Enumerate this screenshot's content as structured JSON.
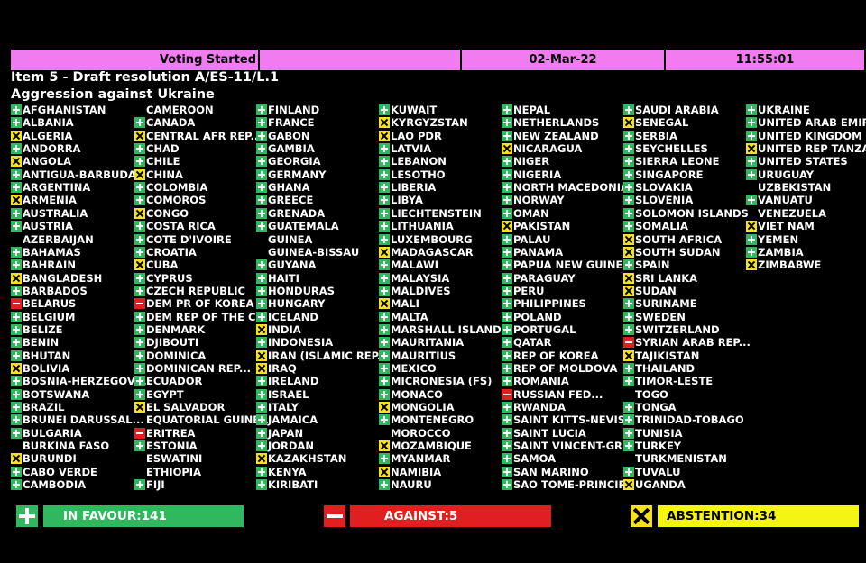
{
  "header": {
    "status": "Voting Started",
    "date": "02-Mar-22",
    "time": "11:55:01"
  },
  "item": {
    "line1": "Item 5 - Draft resolution A/ES-11/L.1",
    "line2": "Aggression against Ukraine"
  },
  "columns": [
    [
      [
        "AFGHANISTAN",
        "Y"
      ],
      [
        "ALBANIA",
        "Y"
      ],
      [
        "ALGERIA",
        "A"
      ],
      [
        "ANDORRA",
        "Y"
      ],
      [
        "ANGOLA",
        "A"
      ],
      [
        "ANTIGUA-BARBUDA",
        "Y"
      ],
      [
        "ARGENTINA",
        "Y"
      ],
      [
        "ARMENIA",
        "A"
      ],
      [
        "AUSTRALIA",
        "Y"
      ],
      [
        "AUSTRIA",
        "Y"
      ],
      [
        "AZERBAIJAN",
        null
      ],
      [
        "BAHAMAS",
        "Y"
      ],
      [
        "BAHRAIN",
        "Y"
      ],
      [
        "BANGLADESH",
        "A"
      ],
      [
        "BARBADOS",
        "Y"
      ],
      [
        "BELARUS",
        "N"
      ],
      [
        "BELGIUM",
        "Y"
      ],
      [
        "BELIZE",
        "Y"
      ],
      [
        "BENIN",
        "Y"
      ],
      [
        "BHUTAN",
        "Y"
      ],
      [
        "BOLIVIA",
        "A"
      ],
      [
        "BOSNIA-HERZEGOVI...",
        "Y"
      ],
      [
        "BOTSWANA",
        "Y"
      ],
      [
        "BRAZIL",
        "Y"
      ],
      [
        "BRUNEI DARUSSAL...",
        "Y"
      ],
      [
        "BULGARIA",
        "Y"
      ],
      [
        "BURKINA FASO",
        null
      ],
      [
        "BURUNDI",
        "A"
      ],
      [
        "CABO VERDE",
        "Y"
      ],
      [
        "CAMBODIA",
        "Y"
      ]
    ],
    [
      [
        "CAMEROON",
        null
      ],
      [
        "CANADA",
        "Y"
      ],
      [
        "CENTRAL AFR REP....",
        "A"
      ],
      [
        "CHAD",
        "Y"
      ],
      [
        "CHILE",
        "Y"
      ],
      [
        "CHINA",
        "A"
      ],
      [
        "COLOMBIA",
        "Y"
      ],
      [
        "COMOROS",
        "Y"
      ],
      [
        "CONGO",
        "A"
      ],
      [
        "COSTA RICA",
        "Y"
      ],
      [
        "COTE D'IVOIRE",
        "Y"
      ],
      [
        "CROATIA",
        "Y"
      ],
      [
        "CUBA",
        "A"
      ],
      [
        "CYPRUS",
        "Y"
      ],
      [
        "CZECH REPUBLIC",
        "Y"
      ],
      [
        "DEM PR OF KOREA",
        "N"
      ],
      [
        "DEM REP OF THE C...",
        "Y"
      ],
      [
        "DENMARK",
        "Y"
      ],
      [
        "DJIBOUTI",
        "Y"
      ],
      [
        "DOMINICA",
        "Y"
      ],
      [
        "DOMINICAN REP...",
        "Y"
      ],
      [
        "ECUADOR",
        "Y"
      ],
      [
        "EGYPT",
        "Y"
      ],
      [
        "EL SALVADOR",
        "A"
      ],
      [
        "EQUATORIAL GUINEA",
        null
      ],
      [
        "ERITREA",
        "N"
      ],
      [
        "ESTONIA",
        "Y"
      ],
      [
        "ESWATINI",
        null
      ],
      [
        "ETHIOPIA",
        null
      ],
      [
        "FIJI",
        "Y"
      ]
    ],
    [
      [
        "FINLAND",
        "Y"
      ],
      [
        "FRANCE",
        "Y"
      ],
      [
        "GABON",
        "Y"
      ],
      [
        "GAMBIA",
        "Y"
      ],
      [
        "GEORGIA",
        "Y"
      ],
      [
        "GERMANY",
        "Y"
      ],
      [
        "GHANA",
        "Y"
      ],
      [
        "GREECE",
        "Y"
      ],
      [
        "GRENADA",
        "Y"
      ],
      [
        "GUATEMALA",
        "Y"
      ],
      [
        "GUINEA",
        null
      ],
      [
        "GUINEA-BISSAU",
        null
      ],
      [
        "GUYANA",
        "Y"
      ],
      [
        "HAITI",
        "Y"
      ],
      [
        "HONDURAS",
        "Y"
      ],
      [
        "HUNGARY",
        "Y"
      ],
      [
        "ICELAND",
        "Y"
      ],
      [
        "INDIA",
        "A"
      ],
      [
        "INDONESIA",
        "Y"
      ],
      [
        "IRAN (ISLAMIC REP...",
        "A"
      ],
      [
        "IRAQ",
        "A"
      ],
      [
        "IRELAND",
        "Y"
      ],
      [
        "ISRAEL",
        "Y"
      ],
      [
        "ITALY",
        "Y"
      ],
      [
        "JAMAICA",
        "Y"
      ],
      [
        "JAPAN",
        "Y"
      ],
      [
        "JORDAN",
        "Y"
      ],
      [
        "KAZAKHSTAN",
        "A"
      ],
      [
        "KENYA",
        "Y"
      ],
      [
        "KIRIBATI",
        "Y"
      ]
    ],
    [
      [
        "KUWAIT",
        "Y"
      ],
      [
        "KYRGYZSTAN",
        "A"
      ],
      [
        "LAO PDR",
        "A"
      ],
      [
        "LATVIA",
        "Y"
      ],
      [
        "LEBANON",
        "Y"
      ],
      [
        "LESOTHO",
        "Y"
      ],
      [
        "LIBERIA",
        "Y"
      ],
      [
        "LIBYA",
        "Y"
      ],
      [
        "LIECHTENSTEIN",
        "Y"
      ],
      [
        "LITHUANIA",
        "Y"
      ],
      [
        "LUXEMBOURG",
        "Y"
      ],
      [
        "MADAGASCAR",
        "A"
      ],
      [
        "MALAWI",
        "Y"
      ],
      [
        "MALAYSIA",
        "Y"
      ],
      [
        "MALDIVES",
        "Y"
      ],
      [
        "MALI",
        "A"
      ],
      [
        "MALTA",
        "Y"
      ],
      [
        "MARSHALL ISLANDS",
        "Y"
      ],
      [
        "MAURITANIA",
        "Y"
      ],
      [
        "MAURITIUS",
        "Y"
      ],
      [
        "MEXICO",
        "Y"
      ],
      [
        "MICRONESIA (FS)",
        "Y"
      ],
      [
        "MONACO",
        "Y"
      ],
      [
        "MONGOLIA",
        "A"
      ],
      [
        "MONTENEGRO",
        "Y"
      ],
      [
        "MOROCCO",
        null
      ],
      [
        "MOZAMBIQUE",
        "A"
      ],
      [
        "MYANMAR",
        "Y"
      ],
      [
        "NAMIBIA",
        "A"
      ],
      [
        "NAURU",
        "Y"
      ]
    ],
    [
      [
        "NEPAL",
        "Y"
      ],
      [
        "NETHERLANDS",
        "Y"
      ],
      [
        "NEW ZEALAND",
        "Y"
      ],
      [
        "NICARAGUA",
        "A"
      ],
      [
        "NIGER",
        "Y"
      ],
      [
        "NIGERIA",
        "Y"
      ],
      [
        "NORTH MACEDONIA",
        "Y"
      ],
      [
        "NORWAY",
        "Y"
      ],
      [
        "OMAN",
        "Y"
      ],
      [
        "PAKISTAN",
        "A"
      ],
      [
        "PALAU",
        "Y"
      ],
      [
        "PANAMA",
        "Y"
      ],
      [
        "PAPUA NEW GUINEA",
        "Y"
      ],
      [
        "PARAGUAY",
        "Y"
      ],
      [
        "PERU",
        "Y"
      ],
      [
        "PHILIPPINES",
        "Y"
      ],
      [
        "POLAND",
        "Y"
      ],
      [
        "PORTUGAL",
        "Y"
      ],
      [
        "QATAR",
        "Y"
      ],
      [
        "REP OF KOREA",
        "Y"
      ],
      [
        "REP OF MOLDOVA",
        "Y"
      ],
      [
        "ROMANIA",
        "Y"
      ],
      [
        "RUSSIAN FED...",
        "N"
      ],
      [
        "RWANDA",
        "Y"
      ],
      [
        "SAINT KITTS-NEVIS",
        "Y"
      ],
      [
        "SAINT LUCIA",
        "Y"
      ],
      [
        "SAINT VINCENT-GR...",
        "Y"
      ],
      [
        "SAMOA",
        "Y"
      ],
      [
        "SAN MARINO",
        "Y"
      ],
      [
        "SAO TOME-PRINCIPE",
        "Y"
      ]
    ],
    [
      [
        "SAUDI ARABIA",
        "Y"
      ],
      [
        "SENEGAL",
        "A"
      ],
      [
        "SERBIA",
        "Y"
      ],
      [
        "SEYCHELLES",
        "Y"
      ],
      [
        "SIERRA LEONE",
        "Y"
      ],
      [
        "SINGAPORE",
        "Y"
      ],
      [
        "SLOVAKIA",
        "Y"
      ],
      [
        "SLOVENIA",
        "Y"
      ],
      [
        "SOLOMON ISLANDS",
        "Y"
      ],
      [
        "SOMALIA",
        "Y"
      ],
      [
        "SOUTH AFRICA",
        "A"
      ],
      [
        "SOUTH SUDAN",
        "A"
      ],
      [
        "SPAIN",
        "Y"
      ],
      [
        "SRI LANKA",
        "A"
      ],
      [
        "SUDAN",
        "A"
      ],
      [
        "SURINAME",
        "Y"
      ],
      [
        "SWEDEN",
        "Y"
      ],
      [
        "SWITZERLAND",
        "Y"
      ],
      [
        "SYRIAN ARAB REP...",
        "N"
      ],
      [
        "TAJIKISTAN",
        "A"
      ],
      [
        "THAILAND",
        "Y"
      ],
      [
        "TIMOR-LESTE",
        "Y"
      ],
      [
        "TOGO",
        null
      ],
      [
        "TONGA",
        "Y"
      ],
      [
        "TRINIDAD-TOBAGO",
        "Y"
      ],
      [
        "TUNISIA",
        "Y"
      ],
      [
        "TURKEY",
        "Y"
      ],
      [
        "TURKMENISTAN",
        null
      ],
      [
        "TUVALU",
        "Y"
      ],
      [
        "UGANDA",
        "A"
      ]
    ],
    [
      [
        "UKRAINE",
        "Y"
      ],
      [
        "UNITED ARAB EMIR...",
        "Y"
      ],
      [
        "UNITED KINGDOM",
        "Y"
      ],
      [
        "UNITED REP TANZA...",
        "A"
      ],
      [
        "UNITED STATES",
        "Y"
      ],
      [
        "URUGUAY",
        "Y"
      ],
      [
        "UZBEKISTAN",
        null
      ],
      [
        "VANUATU",
        "Y"
      ],
      [
        "VENEZUELA",
        null
      ],
      [
        "VIET NAM",
        "A"
      ],
      [
        "YEMEN",
        "Y"
      ],
      [
        "ZAMBIA",
        "Y"
      ],
      [
        "ZIMBABWE",
        "A"
      ]
    ]
  ],
  "totals": {
    "in_favour": "IN FAVOUR:141",
    "against": "AGAINST:5",
    "abstention": "ABSTENTION:34"
  }
}
